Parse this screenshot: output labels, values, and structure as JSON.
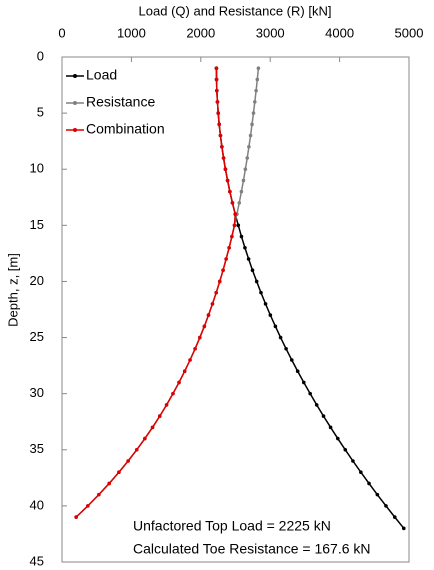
{
  "chart_data": {
    "type": "line",
    "x_label": "Load (Q) and Resistance (R) [kN]",
    "y_label": "Depth, z, [m]",
    "xlim": [
      0,
      5000
    ],
    "xticks": [
      0,
      1000,
      2000,
      3000,
      4000,
      5000
    ],
    "ylim": [
      0,
      45
    ],
    "yticks": [
      0,
      5,
      10,
      15,
      20,
      25,
      30,
      35,
      40,
      45
    ],
    "y_inverted": true,
    "legend": "top-left",
    "annotations": [
      "Unfactored Top Load = 2225 kN",
      "Calculated Toe Resistance = 167.6 kN"
    ],
    "series": [
      {
        "name": "Load",
        "color": "#000000",
        "x": [
          2225,
          2227,
          2231,
          2240,
          2251,
          2265,
          2283,
          2304,
          2328,
          2355,
          2386,
          2419,
          2456,
          2496,
          2540,
          2586,
          2636,
          2689,
          2745,
          2805,
          2867,
          2933,
          3002,
          3075,
          3150,
          3229,
          3311,
          3396,
          3484,
          3576,
          3670,
          3768,
          3870,
          3974,
          4082,
          4192,
          4306,
          4424,
          4544,
          4668,
          4795,
          4925
        ],
        "y": [
          1,
          2,
          3,
          4,
          5,
          6,
          7,
          8,
          9,
          10,
          11,
          12,
          13,
          14,
          15,
          16,
          17,
          18,
          19,
          20,
          21,
          22,
          23,
          24,
          25,
          26,
          27,
          28,
          29,
          30,
          31,
          32,
          33,
          34,
          35,
          36,
          37,
          38,
          39,
          40,
          41,
          42
        ]
      },
      {
        "name": "Resistance",
        "color": "#808080",
        "x": [
          2830,
          2814,
          2797,
          2778,
          2759,
          2738,
          2717,
          2693,
          2669,
          2642,
          2615,
          2585,
          2554,
          2520,
          2485,
          2448,
          2408,
          2365,
          2321,
          2273,
          2222,
          2168,
          2111,
          2051,
          1986,
          1918,
          1845,
          1768,
          1686,
          1599,
          1507,
          1409,
          1305,
          1194,
          1077,
          953,
          820,
          680,
          531,
          372,
          204
        ],
        "y": [
          1,
          2,
          3,
          4,
          5,
          6,
          7,
          8,
          9,
          10,
          11,
          12,
          13,
          14,
          15,
          16,
          17,
          18,
          19,
          20,
          21,
          22,
          23,
          24,
          25,
          26,
          27,
          28,
          29,
          30,
          31,
          32,
          33,
          34,
          35,
          36,
          37,
          38,
          39,
          40,
          41
        ]
      },
      {
        "name": "Combination",
        "color": "#e00000",
        "x": [
          2225,
          2227,
          2231,
          2240,
          2251,
          2265,
          2283,
          2304,
          2328,
          2355,
          2386,
          2419,
          2456,
          2496,
          2485,
          2448,
          2408,
          2365,
          2321,
          2273,
          2222,
          2168,
          2111,
          2051,
          1986,
          1918,
          1845,
          1768,
          1686,
          1599,
          1507,
          1409,
          1305,
          1194,
          1077,
          953,
          820,
          680,
          531,
          372,
          204
        ],
        "y": [
          1,
          2,
          3,
          4,
          5,
          6,
          7,
          8,
          9,
          10,
          11,
          12,
          13,
          14,
          15,
          16,
          17,
          18,
          19,
          20,
          21,
          22,
          23,
          24,
          25,
          26,
          27,
          28,
          29,
          30,
          31,
          32,
          33,
          34,
          35,
          36,
          37,
          38,
          39,
          40,
          41
        ]
      }
    ]
  }
}
